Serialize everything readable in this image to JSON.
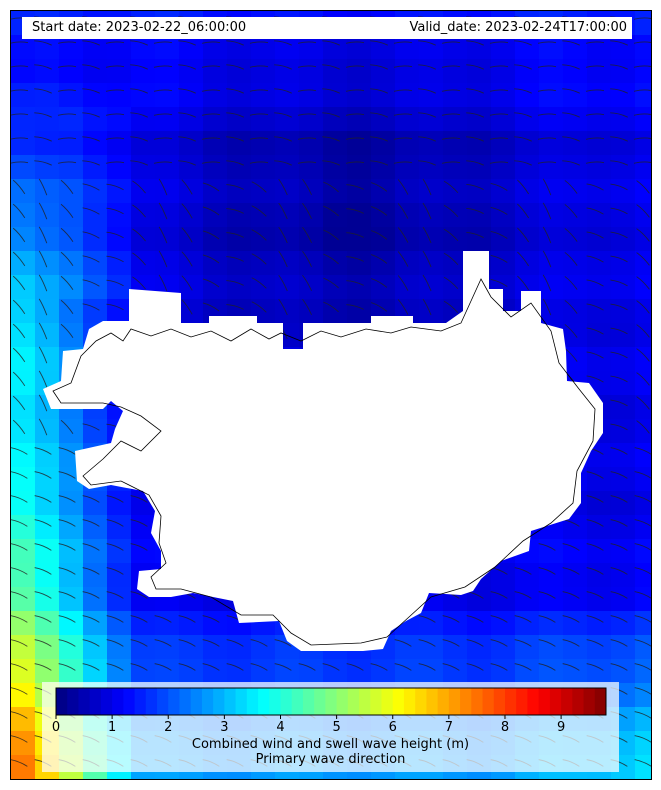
{
  "header": {
    "start_label": "Start date: 2023-02-22_06:00:00",
    "valid_label": "Valid_date: 2023-02-24T17:00:00"
  },
  "legend": {
    "colorbar_label": "Combined wind and swell wave height (m)",
    "direction_label": "Primary wave direction",
    "ticks": [
      "0",
      "1",
      "2",
      "3",
      "4",
      "5",
      "6",
      "7",
      "8",
      "9"
    ],
    "min_value": 0,
    "max_value": 9.8
  },
  "chart_data": {
    "type": "heatmap",
    "title": "Combined wind and swell wave height (m) around Iceland",
    "units": "m",
    "colormap": "jet",
    "value_range": [
      0,
      9.8
    ],
    "approximate_values": {
      "north_coast": 0.5,
      "northwest_offshore": 1.5,
      "west_offshore": 3.5,
      "southwest_corner": 5.5,
      "south_coast": 2.5,
      "southeast_offshore": 3.5,
      "east_coast": 1.0
    },
    "arrow_layer": "Primary wave direction"
  },
  "colors": {
    "land": "#ffffff",
    "coastline": "#000000",
    "frame": "#000000"
  }
}
